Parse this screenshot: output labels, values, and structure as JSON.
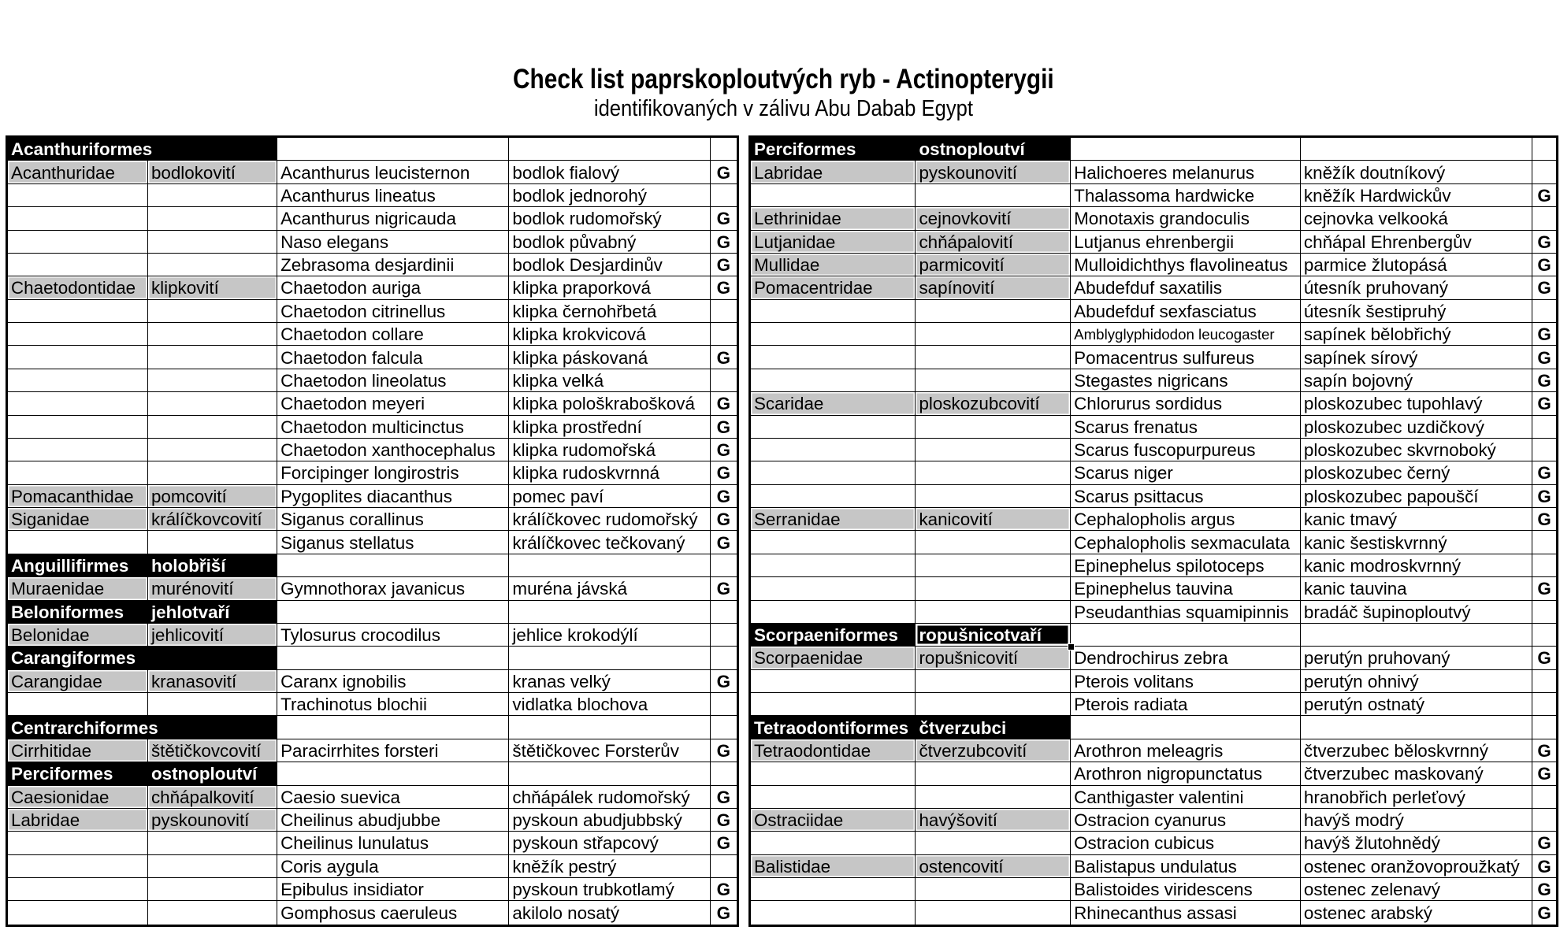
{
  "title": "Check list paprskoploutvých ryb - Actinopterygii",
  "subtitle": "identifikovaných v zálivu Abu Dabab Egypt",
  "g_label": "G",
  "colors": {
    "order_row_bg": "#000000",
    "order_row_text": "#ffffff",
    "family_cell_bg": "#c6c6c6",
    "grid_line": "#000000",
    "page_bg": "#ffffff"
  },
  "tables": [
    {
      "id": "left",
      "rows": [
        {
          "type": "order",
          "order": "Acanthuriformes",
          "order_czech": ""
        },
        {
          "type": "family",
          "family": "Acanthuridae",
          "family_czech": "bodlokovití",
          "species": "Acanthurus leucisternon",
          "species_czech": "bodlok fialový",
          "g": true
        },
        {
          "type": "species",
          "species": "Acanthurus lineatus",
          "species_czech": "bodlok jednorohý",
          "g": false
        },
        {
          "type": "species",
          "species": "Acanthurus nigricauda",
          "species_czech": "bodlok rudomořský",
          "g": true
        },
        {
          "type": "species",
          "species": "Naso elegans",
          "species_czech": "bodlok půvabný",
          "g": true
        },
        {
          "type": "species",
          "species": "Zebrasoma desjardinii",
          "species_czech": "bodlok Desjardinův",
          "g": true
        },
        {
          "type": "family",
          "family": "Chaetodontidae",
          "family_czech": "klipkovití",
          "species": "Chaetodon auriga",
          "species_czech": "klipka praporková",
          "g": true
        },
        {
          "type": "species",
          "species": "Chaetodon citrinellus",
          "species_czech": "klipka černohřbetá",
          "g": false
        },
        {
          "type": "species",
          "species": "Chaetodon collare",
          "species_czech": "klipka krokvicová",
          "g": false
        },
        {
          "type": "species",
          "species": "Chaetodon falcula",
          "species_czech": "klipka páskovaná",
          "g": true
        },
        {
          "type": "species",
          "species": "Chaetodon lineolatus",
          "species_czech": "klipka velká",
          "g": false
        },
        {
          "type": "species",
          "species": "Chaetodon meyeri",
          "species_czech": "klipka pološkrabošková",
          "g": true
        },
        {
          "type": "species",
          "species": "Chaetodon multicinctus",
          "species_czech": "klipka prostřední",
          "g": true
        },
        {
          "type": "species",
          "species": "Chaetodon xanthocephalus",
          "species_czech": "klipka rudomořská",
          "g": true
        },
        {
          "type": "species",
          "species": "Forcipinger longirostris",
          "species_czech": "klipka rudoskvrnná",
          "g": true
        },
        {
          "type": "family",
          "family": "Pomacanthidae",
          "family_czech": "pomcovití",
          "species": "Pygoplites diacanthus",
          "species_czech": "pomec paví",
          "g": true
        },
        {
          "type": "family",
          "family": "Siganidae",
          "family_czech": "králíčkovcovití",
          "species": "Siganus corallinus",
          "species_czech": "králíčkovec rudomořský",
          "g": true
        },
        {
          "type": "species",
          "species": "Siganus stellatus",
          "species_czech": "králíčkovec tečkovaný",
          "g": true
        },
        {
          "type": "order",
          "order": "Anguillifirmes",
          "order_czech": "holobřiší"
        },
        {
          "type": "family",
          "family": "Muraenidae",
          "family_czech": "murénovití",
          "species": "Gymnothorax javanicus",
          "species_czech": "muréna jávská",
          "g": true
        },
        {
          "type": "order",
          "order": "Beloniformes",
          "order_czech": "jehlotvaří"
        },
        {
          "type": "family",
          "family": "Belonidae",
          "family_czech": "jehlicovití",
          "species": "Tylosurus crocodilus",
          "species_czech": "jehlice krokodýlí",
          "g": false
        },
        {
          "type": "order",
          "order": "Carangiformes",
          "order_czech": ""
        },
        {
          "type": "family",
          "family": "Carangidae",
          "family_czech": "kranasovití",
          "species": "Caranx ignobilis",
          "species_czech": "kranas velký",
          "g": true
        },
        {
          "type": "species",
          "species": "Trachinotus blochii",
          "species_czech": "vidlatka blochova",
          "g": false
        },
        {
          "type": "order",
          "order": "Centrarchiformes",
          "order_czech": ""
        },
        {
          "type": "family",
          "family": "Cirrhitidae",
          "family_czech": "štětičkovcovití",
          "species": "Paracirrhites forsteri",
          "species_czech": "štětičkovec Forsterův",
          "g": true
        },
        {
          "type": "order",
          "order": "Perciformes",
          "order_czech": "ostnoploutví"
        },
        {
          "type": "family",
          "family": "Caesionidae",
          "family_czech": "chňápalkovití",
          "species": "Caesio suevica",
          "species_czech": "chňápálek rudomořský",
          "g": true
        },
        {
          "type": "family",
          "family": "Labridae",
          "family_czech": "pyskounovití",
          "species": "Cheilinus abudjubbe",
          "species_czech": "pyskoun abudjubbský",
          "g": true
        },
        {
          "type": "species",
          "species": "Cheilinus lunulatus",
          "species_czech": "pyskoun střapcový",
          "g": true
        },
        {
          "type": "species",
          "species": "Coris aygula",
          "species_czech": "kněžík pestrý",
          "g": false
        },
        {
          "type": "species",
          "species": "Epibulus insidiator",
          "species_czech": "pyskoun trubkotlamý",
          "g": true
        },
        {
          "type": "species",
          "species": "Gomphosus caeruleus",
          "species_czech": "akilolo nosatý",
          "g": true
        }
      ]
    },
    {
      "id": "right",
      "rows": [
        {
          "type": "order",
          "order": "Perciformes",
          "order_czech": "ostnoploutví"
        },
        {
          "type": "family",
          "family": "Labridae",
          "family_czech": "pyskounovití",
          "species": "Halichoeres melanurus",
          "species_czech": "kněžík doutníkový",
          "g": false
        },
        {
          "type": "species",
          "species": "Thalassoma hardwicke",
          "species_czech": "kněžík Hardwickův",
          "g": true
        },
        {
          "type": "family",
          "family": "Lethrinidae",
          "family_czech": "cejnovkovití",
          "species": "Monotaxis grandoculis",
          "species_czech": "cejnovka velkooká",
          "g": false
        },
        {
          "type": "family",
          "family": "Lutjanidae",
          "family_czech": "chňápalovití",
          "species": "Lutjanus ehrenbergii",
          "species_czech": "chňápal Ehrenbergův",
          "g": true
        },
        {
          "type": "family",
          "family": "Mullidae",
          "family_czech": "parmicovití",
          "species": "Mulloidichthys flavolineatus",
          "species_czech": "parmice žlutopásá",
          "g": true
        },
        {
          "type": "family",
          "family": "Pomacentridae",
          "family_czech": "sapínovití",
          "species": "Abudefduf saxatilis",
          "species_czech": "útesník pruhovaný",
          "g": true
        },
        {
          "type": "species",
          "species": "Abudefduf sexfasciatus",
          "species_czech": "útesník šestipruhý",
          "g": false
        },
        {
          "type": "species",
          "species": "Amblyglyphidodon leucogaster",
          "species_czech": "sapínek bělobřichý",
          "g": true,
          "small": true
        },
        {
          "type": "species",
          "species": "Pomacentrus sulfureus",
          "species_czech": "sapínek sírový",
          "g": true
        },
        {
          "type": "species",
          "species": "Stegastes nigricans",
          "species_czech": "sapín bojovný",
          "g": true
        },
        {
          "type": "family",
          "family": "Scaridae",
          "family_czech": "ploskozubcovití",
          "species": "Chlorurus sordidus",
          "species_czech": "ploskozubec tupohlavý",
          "g": true
        },
        {
          "type": "species",
          "species": "Scarus frenatus",
          "species_czech": "ploskozubec uzdičkový",
          "g": false
        },
        {
          "type": "species",
          "species": "Scarus fuscopurpureus",
          "species_czech": "ploskozubec skvrnoboký",
          "g": false
        },
        {
          "type": "species",
          "species": "Scarus niger",
          "species_czech": "ploskozubec černý",
          "g": true
        },
        {
          "type": "species",
          "species": "Scarus psittacus",
          "species_czech": "ploskozubec papouščí",
          "g": true
        },
        {
          "type": "family",
          "family": "Serranidae",
          "family_czech": "kanicovití",
          "species": "Cephalopholis argus",
          "species_czech": "kanic tmavý",
          "g": true
        },
        {
          "type": "species",
          "species": "Cephalopholis sexmaculata",
          "species_czech": "kanic šestiskvrnný",
          "g": false
        },
        {
          "type": "species",
          "species": "Epinephelus spilotoceps",
          "species_czech": "kanic modroskvrnný",
          "g": false
        },
        {
          "type": "species",
          "species": "Epinephelus tauvina",
          "species_czech": "kanic tauvina",
          "g": true
        },
        {
          "type": "species",
          "species": "Pseudanthias squamipinnis",
          "species_czech": "bradáč šupinoploutvý",
          "g": false
        },
        {
          "type": "order",
          "order": "Scorpaeniformes",
          "order_czech": "ropušnicotvaří",
          "active_cell": true
        },
        {
          "type": "family",
          "family": "Scorpaenidae",
          "family_czech": "ropušnicovití",
          "species": "Dendrochirus zebra",
          "species_czech": "perutýn pruhovaný",
          "g": true
        },
        {
          "type": "species",
          "species": "Pterois volitans",
          "species_czech": "perutýn ohnivý",
          "g": false
        },
        {
          "type": "species",
          "species": "Pterois radiata",
          "species_czech": "perutýn ostnatý",
          "g": false
        },
        {
          "type": "order",
          "order": "Tetraodontiformes",
          "order_czech": "čtverzubci"
        },
        {
          "type": "family",
          "family": "Tetraodontidae",
          "family_czech": "čtverzubcovití",
          "species": "Arothron meleagris",
          "species_czech": "čtverzubec běloskvrnný",
          "g": true
        },
        {
          "type": "species",
          "species": "Arothron nigropunctatus",
          "species_czech": "čtverzubec maskovaný",
          "g": true
        },
        {
          "type": "species",
          "species": "Canthigaster valentini",
          "species_czech": "hranobřich perleťový",
          "g": false
        },
        {
          "type": "family",
          "family": "Ostraciidae",
          "family_czech": "havýšovití",
          "species": "Ostracion cyanurus",
          "species_czech": "havýš modrý",
          "g": false
        },
        {
          "type": "species",
          "species": "Ostracion cubicus",
          "species_czech": "havýš žlutohnědý",
          "g": true
        },
        {
          "type": "family",
          "family": "Balistidae",
          "family_czech": "ostencovití",
          "species": "Balistapus undulatus",
          "species_czech": "ostenec oranžovoproužkatý",
          "g": true
        },
        {
          "type": "species",
          "species": "Balistoides viridescens",
          "species_czech": "ostenec zelenavý",
          "g": true
        },
        {
          "type": "species",
          "species": "Rhinecanthus assasi",
          "species_czech": "ostenec arabský",
          "g": true
        }
      ]
    }
  ]
}
